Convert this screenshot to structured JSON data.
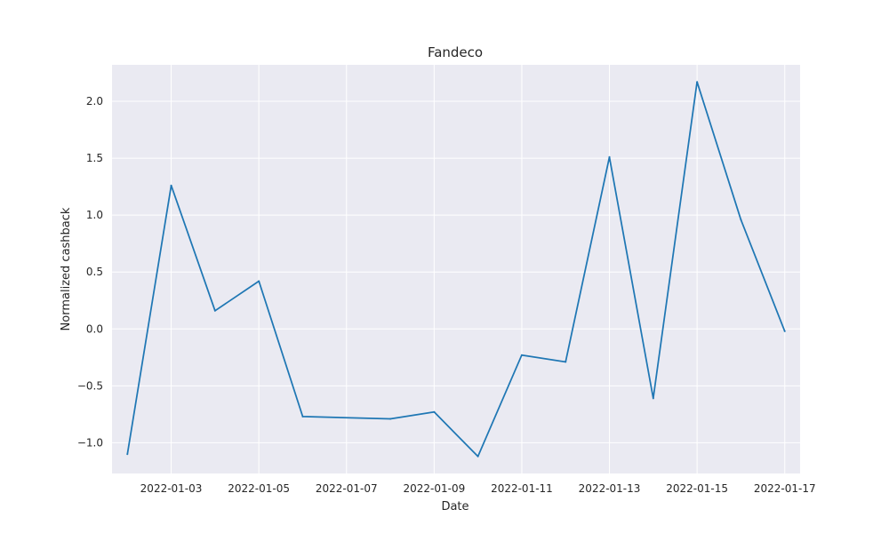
{
  "chart_data": {
    "type": "line",
    "title": "Fandeco",
    "xlabel": "Date",
    "ylabel": "Normalized cashback",
    "x": [
      "2022-01-02",
      "2022-01-03",
      "2022-01-04",
      "2022-01-05",
      "2022-01-06",
      "2022-01-08",
      "2022-01-09",
      "2022-01-10",
      "2022-01-11",
      "2022-01-12",
      "2022-01-13",
      "2022-01-14",
      "2022-01-15",
      "2022-01-16",
      "2022-01-17"
    ],
    "series": [
      {
        "values": [
          -1.1,
          1.26,
          0.16,
          0.42,
          -0.77,
          -0.79,
          -0.73,
          -1.12,
          -0.23,
          -0.29,
          1.51,
          -0.61,
          2.17,
          0.96,
          -0.02
        ],
        "color": "#1f77b4"
      }
    ],
    "xlim": [
      "2022-01-01",
      "2022-01-17"
    ],
    "ylim": [
      -1.27,
      2.32
    ],
    "x_ticks": [
      "2022-01-03",
      "2022-01-05",
      "2022-01-07",
      "2022-01-09",
      "2022-01-11",
      "2022-01-13",
      "2022-01-15",
      "2022-01-17"
    ],
    "y_ticks": [
      -1.0,
      -0.5,
      0.0,
      0.5,
      1.0,
      1.5,
      2.0
    ],
    "y_tick_labels": [
      "−1.0",
      "−0.5",
      "0.0",
      "0.5",
      "1.0",
      "1.5",
      "2.0"
    ],
    "grid": true,
    "background": "#eaeaf2",
    "grid_color": "#ffffff"
  }
}
